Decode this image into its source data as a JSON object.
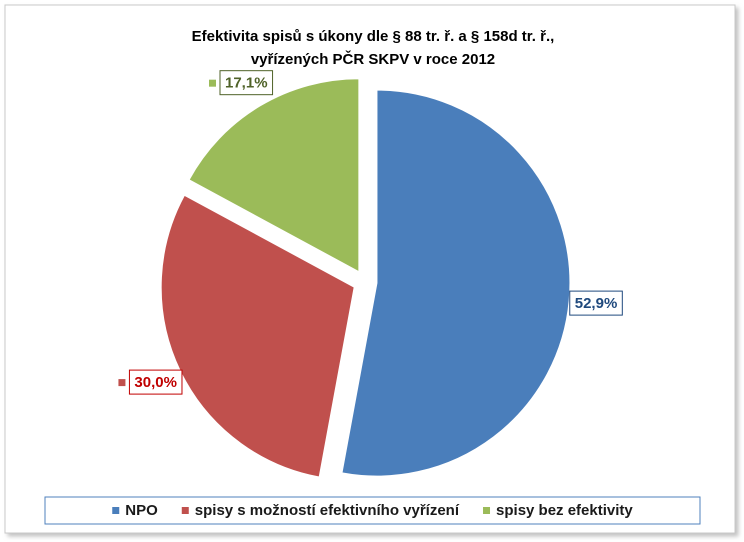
{
  "chart_data": {
    "type": "pie",
    "title": [
      "Efektivita spisů s úkony dle § 88 tr. ř. a § 158d tr. ř.,",
      "vyřízených PČR SKPV v roce 2012"
    ],
    "categories": [
      "NPO",
      "spisy s možností efektivního vyřízení",
      "spisy bez efektivity"
    ],
    "values": [
      52.9,
      30.0,
      17.1
    ],
    "value_labels": [
      "52,9%",
      "30,0%",
      "17,1%"
    ],
    "colors": [
      "#4a7ebb",
      "#c0504d",
      "#9bbb59"
    ],
    "label_colors": [
      "#1f497d",
      "#c00000",
      "#4f6228"
    ],
    "legend": "bottom"
  }
}
